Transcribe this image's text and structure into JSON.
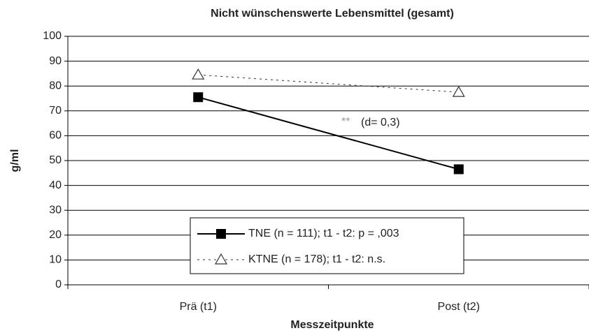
{
  "chart_data": {
    "type": "line",
    "title": "Nicht wünschenswerte Lebensmittel (gesamt)",
    "x_label": "Messzeitpunkte",
    "y_label": "g/ml",
    "categories": [
      "Prä (t1)",
      "Post (t2)"
    ],
    "series": [
      {
        "name": "TNE (n = 111); t1 - t2: p = ,003",
        "color": "#000000",
        "marker": "square",
        "line_style": "solid",
        "values": [
          75.5,
          46.5
        ]
      },
      {
        "name": "KTNE (n = 178); t1 - t2: n.s.",
        "color": "#333333",
        "marker": "triangle",
        "line_style": "dashed",
        "values": [
          84.5,
          77.5
        ]
      }
    ],
    "annotation": [
      "**",
      "(d= 0,3)"
    ],
    "ylim": [
      0,
      100
    ],
    "yticks": [
      0,
      10,
      20,
      30,
      40,
      50,
      60,
      70,
      80,
      90,
      100
    ],
    "grid": true
  }
}
